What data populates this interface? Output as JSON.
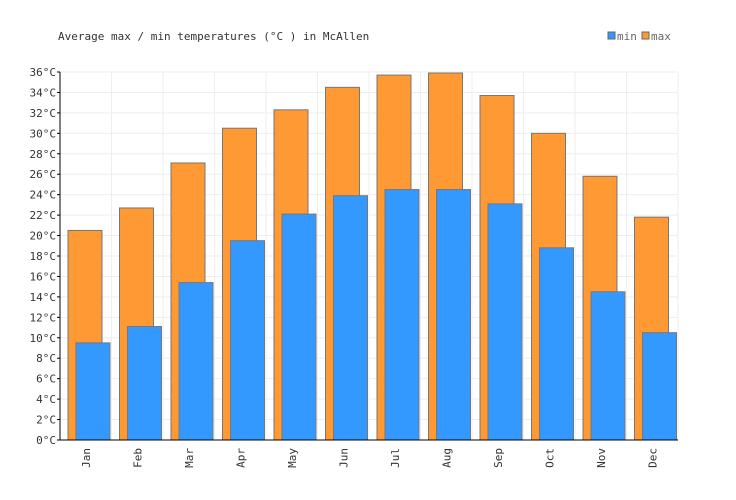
{
  "chart_data": {
    "type": "bar",
    "title": "Average max / min temperatures (°C ) in McAllen",
    "categories": [
      "Jan",
      "Feb",
      "Mar",
      "Apr",
      "May",
      "Jun",
      "Jul",
      "Aug",
      "Sep",
      "Oct",
      "Nov",
      "Dec"
    ],
    "series": [
      {
        "name": "min",
        "color": "#3399ff",
        "values": [
          9.5,
          11.1,
          15.4,
          19.5,
          22.1,
          23.9,
          24.5,
          24.5,
          23.1,
          18.8,
          14.5,
          10.5
        ]
      },
      {
        "name": "max",
        "color": "#ff9933",
        "values": [
          20.5,
          22.7,
          27.1,
          30.5,
          32.3,
          34.5,
          35.7,
          35.9,
          33.7,
          30.0,
          25.8,
          21.8
        ]
      }
    ],
    "ylim": [
      0,
      36
    ],
    "ytick_step": 2,
    "ytick_unit": "°C",
    "grid": true,
    "legend": "top-right"
  }
}
